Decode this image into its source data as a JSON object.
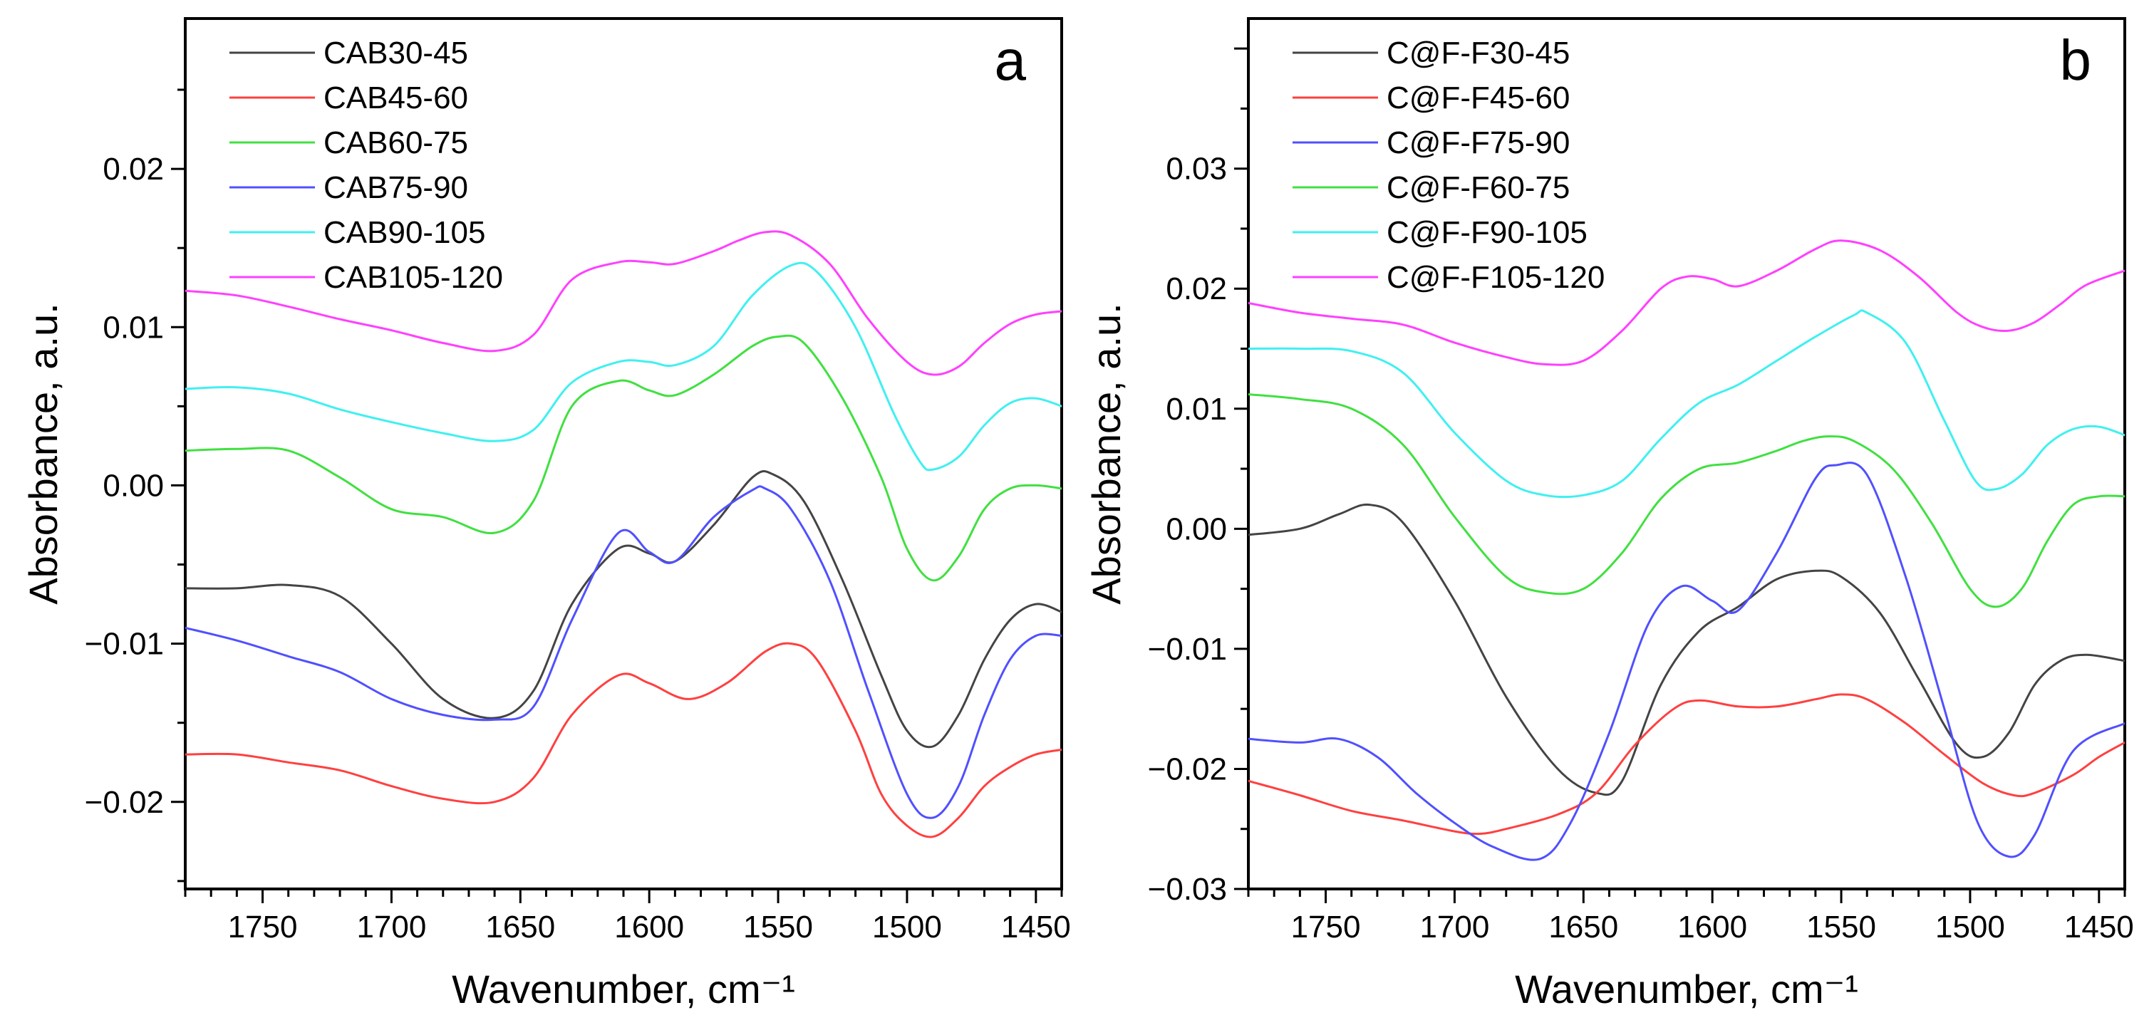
{
  "chart_data": [
    {
      "type": "line",
      "panel_label": "a",
      "xlabel": "Wavenumber, cm⁻¹",
      "ylabel": "Absorbance, a.u.",
      "xlim": [
        1780,
        1440
      ],
      "ylim": [
        -0.0255,
        0.0295
      ],
      "xticks": [
        1750,
        1700,
        1650,
        1600,
        1550,
        1500,
        1450
      ],
      "xtick_labels": [
        "1750",
        "1700",
        "1650",
        "1600",
        "1550",
        "1500",
        "1450"
      ],
      "yticks": [
        0.02,
        0.01,
        0.0,
        -0.01,
        -0.02
      ],
      "ytick_labels": [
        "0.02",
        "0.01",
        "0.00",
        "−0.01",
        "−0.02"
      ],
      "legend_position": "top-left",
      "series": [
        {
          "name": "CAB30-45",
          "color": "#444444",
          "x": [
            1780,
            1760,
            1740,
            1720,
            1700,
            1680,
            1660,
            1645,
            1630,
            1612,
            1600,
            1590,
            1575,
            1560,
            1552,
            1540,
            1525,
            1510,
            1500,
            1490,
            1480,
            1470,
            1460,
            1450,
            1440
          ],
          "y": [
            -0.0065,
            -0.0065,
            -0.0063,
            -0.007,
            -0.01,
            -0.0135,
            -0.0147,
            -0.013,
            -0.0075,
            -0.004,
            -0.0043,
            -0.0048,
            -0.0025,
            0.0005,
            0.0007,
            -0.001,
            -0.006,
            -0.012,
            -0.0155,
            -0.0165,
            -0.0145,
            -0.011,
            -0.0085,
            -0.0075,
            -0.008
          ]
        },
        {
          "name": "CAB45-60",
          "color": "#ff4040",
          "x": [
            1780,
            1760,
            1740,
            1720,
            1700,
            1680,
            1660,
            1645,
            1630,
            1612,
            1600,
            1585,
            1570,
            1555,
            1545,
            1535,
            1520,
            1510,
            1500,
            1490,
            1480,
            1470,
            1460,
            1450,
            1440
          ],
          "y": [
            -0.017,
            -0.017,
            -0.0175,
            -0.018,
            -0.019,
            -0.0198,
            -0.02,
            -0.0185,
            -0.0145,
            -0.012,
            -0.0125,
            -0.0135,
            -0.0125,
            -0.0105,
            -0.01,
            -0.011,
            -0.0155,
            -0.0195,
            -0.0215,
            -0.0222,
            -0.021,
            -0.019,
            -0.0178,
            -0.017,
            -0.0167
          ]
        },
        {
          "name": "CAB60-75",
          "color": "#40e040",
          "x": [
            1780,
            1760,
            1740,
            1720,
            1700,
            1680,
            1660,
            1645,
            1630,
            1612,
            1600,
            1590,
            1575,
            1560,
            1550,
            1540,
            1525,
            1510,
            1500,
            1490,
            1480,
            1470,
            1460,
            1450,
            1440
          ],
          "y": [
            0.0022,
            0.0023,
            0.0022,
            0.0005,
            -0.0015,
            -0.002,
            -0.003,
            -0.001,
            0.005,
            0.0066,
            0.006,
            0.0057,
            0.007,
            0.0088,
            0.0094,
            0.009,
            0.0055,
            0.0005,
            -0.004,
            -0.006,
            -0.0045,
            -0.0015,
            -0.0002,
            0.0,
            -0.0002
          ]
        },
        {
          "name": "CAB75-90",
          "color": "#5050ff",
          "x": [
            1780,
            1760,
            1740,
            1720,
            1700,
            1680,
            1660,
            1645,
            1630,
            1612,
            1600,
            1590,
            1575,
            1560,
            1555,
            1545,
            1530,
            1515,
            1500,
            1490,
            1480,
            1470,
            1460,
            1450,
            1440
          ],
          "y": [
            -0.009,
            -0.0098,
            -0.0108,
            -0.0118,
            -0.0135,
            -0.0145,
            -0.0148,
            -0.014,
            -0.0085,
            -0.003,
            -0.0042,
            -0.0048,
            -0.002,
            -0.0003,
            -0.0002,
            -0.0015,
            -0.006,
            -0.013,
            -0.0195,
            -0.021,
            -0.019,
            -0.0145,
            -0.011,
            -0.0095,
            -0.0095
          ]
        },
        {
          "name": "CAB90-105",
          "color": "#40f0f0",
          "x": [
            1780,
            1760,
            1740,
            1720,
            1700,
            1680,
            1660,
            1645,
            1630,
            1612,
            1600,
            1590,
            1575,
            1560,
            1545,
            1535,
            1520,
            1505,
            1495,
            1490,
            1480,
            1470,
            1460,
            1450,
            1440
          ],
          "y": [
            0.0061,
            0.0062,
            0.0058,
            0.0048,
            0.004,
            0.0033,
            0.0028,
            0.0035,
            0.0065,
            0.0078,
            0.0078,
            0.0076,
            0.0088,
            0.012,
            0.0139,
            0.0135,
            0.01,
            0.0045,
            0.0015,
            0.001,
            0.0018,
            0.0038,
            0.0052,
            0.0055,
            0.005
          ]
        },
        {
          "name": "CAB105-120",
          "color": "#ff40ff",
          "x": [
            1780,
            1760,
            1740,
            1720,
            1700,
            1680,
            1660,
            1645,
            1630,
            1612,
            1600,
            1590,
            1575,
            1565,
            1555,
            1545,
            1530,
            1515,
            1500,
            1490,
            1480,
            1470,
            1460,
            1450,
            1440
          ],
          "y": [
            0.0123,
            0.012,
            0.0113,
            0.0105,
            0.0098,
            0.009,
            0.0085,
            0.0095,
            0.013,
            0.0141,
            0.0141,
            0.014,
            0.0148,
            0.0155,
            0.016,
            0.0158,
            0.014,
            0.0105,
            0.0078,
            0.007,
            0.0075,
            0.009,
            0.0102,
            0.0108,
            0.011
          ]
        }
      ]
    },
    {
      "type": "line",
      "panel_label": "b",
      "xlabel": "Wavenumber, cm⁻¹",
      "ylabel": "Absorbance, a.u.",
      "xlim": [
        1780,
        1440
      ],
      "ylim": [
        -0.03,
        0.0425
      ],
      "xticks": [
        1750,
        1700,
        1650,
        1600,
        1550,
        1500,
        1450
      ],
      "xtick_labels": [
        "1750",
        "1700",
        "1650",
        "1600",
        "1550",
        "1500",
        "1450"
      ],
      "yticks": [
        0.03,
        0.02,
        0.01,
        0.0,
        -0.01,
        -0.02,
        -0.03
      ],
      "ytick_labels": [
        "0.03",
        "0.02",
        "0.01",
        "0.00",
        "−0.01",
        "−0.02",
        "−0.03"
      ],
      "legend_position": "top-left",
      "series": [
        {
          "name": "C@F-F30-45",
          "color": "#444444",
          "x": [
            1780,
            1760,
            1745,
            1733,
            1720,
            1700,
            1680,
            1660,
            1645,
            1635,
            1620,
            1605,
            1590,
            1575,
            1560,
            1550,
            1535,
            1520,
            1505,
            1495,
            1485,
            1475,
            1465,
            1455,
            1440
          ],
          "y": [
            -0.0005,
            0.0,
            0.0012,
            0.002,
            0.0005,
            -0.006,
            -0.014,
            -0.02,
            -0.022,
            -0.021,
            -0.013,
            -0.0085,
            -0.0065,
            -0.0042,
            -0.0035,
            -0.004,
            -0.007,
            -0.0125,
            -0.018,
            -0.019,
            -0.017,
            -0.013,
            -0.011,
            -0.0105,
            -0.011
          ]
        },
        {
          "name": "C@F-F45-60",
          "color": "#ff4040",
          "x": [
            1780,
            1760,
            1740,
            1720,
            1700,
            1690,
            1680,
            1660,
            1645,
            1630,
            1615,
            1605,
            1590,
            1575,
            1560,
            1550,
            1540,
            1525,
            1510,
            1495,
            1483,
            1475,
            1460,
            1450,
            1440
          ],
          "y": [
            -0.021,
            -0.0222,
            -0.0235,
            -0.0243,
            -0.0252,
            -0.0254,
            -0.025,
            -0.0238,
            -0.022,
            -0.018,
            -0.015,
            -0.0143,
            -0.0148,
            -0.0148,
            -0.0142,
            -0.0138,
            -0.0142,
            -0.0162,
            -0.0188,
            -0.0212,
            -0.0222,
            -0.022,
            -0.0205,
            -0.019,
            -0.0178
          ]
        },
        {
          "name": "C@F-F75-90",
          "color": "#5050ff",
          "x": [
            1780,
            1760,
            1745,
            1730,
            1715,
            1700,
            1685,
            1667,
            1655,
            1640,
            1625,
            1612,
            1600,
            1590,
            1575,
            1560,
            1552,
            1540,
            1525,
            1510,
            1497,
            1485,
            1475,
            1460,
            1440
          ],
          "y": [
            -0.0175,
            -0.0178,
            -0.0175,
            -0.019,
            -0.022,
            -0.0245,
            -0.0265,
            -0.0275,
            -0.0245,
            -0.017,
            -0.008,
            -0.0048,
            -0.006,
            -0.0068,
            -0.002,
            0.0042,
            0.0053,
            0.0045,
            -0.004,
            -0.015,
            -0.0245,
            -0.0273,
            -0.0255,
            -0.0185,
            -0.0162
          ]
        },
        {
          "name": "C@F-F60-75",
          "color": "#40e040",
          "x": [
            1780,
            1760,
            1740,
            1720,
            1700,
            1680,
            1665,
            1650,
            1635,
            1620,
            1605,
            1590,
            1575,
            1565,
            1555,
            1545,
            1530,
            1515,
            1500,
            1490,
            1480,
            1470,
            1460,
            1450,
            1440
          ],
          "y": [
            0.0112,
            0.0108,
            0.01,
            0.007,
            0.001,
            -0.004,
            -0.0053,
            -0.005,
            -0.002,
            0.0025,
            0.005,
            0.0055,
            0.0065,
            0.0073,
            0.0077,
            0.0073,
            0.005,
            0.0005,
            -0.005,
            -0.0065,
            -0.005,
            -0.001,
            0.002,
            0.0027,
            0.0027
          ]
        },
        {
          "name": "C@F-F90-105",
          "color": "#40f0f0",
          "x": [
            1780,
            1760,
            1740,
            1720,
            1700,
            1680,
            1665,
            1650,
            1635,
            1620,
            1605,
            1590,
            1575,
            1560,
            1545,
            1540,
            1525,
            1510,
            1498,
            1490,
            1480,
            1470,
            1460,
            1450,
            1440
          ],
          "y": [
            0.015,
            0.015,
            0.0148,
            0.013,
            0.008,
            0.004,
            0.0028,
            0.0028,
            0.004,
            0.0075,
            0.0105,
            0.012,
            0.014,
            0.016,
            0.0178,
            0.018,
            0.0155,
            0.009,
            0.004,
            0.0033,
            0.0045,
            0.007,
            0.0083,
            0.0085,
            0.0078
          ]
        },
        {
          "name": "C@F-F105-120",
          "color": "#ff40ff",
          "x": [
            1780,
            1760,
            1740,
            1720,
            1700,
            1680,
            1665,
            1650,
            1635,
            1620,
            1610,
            1600,
            1590,
            1575,
            1560,
            1550,
            1535,
            1520,
            1505,
            1495,
            1485,
            1475,
            1465,
            1455,
            1440
          ],
          "y": [
            0.0188,
            0.018,
            0.0175,
            0.017,
            0.0155,
            0.0143,
            0.0137,
            0.014,
            0.0165,
            0.02,
            0.021,
            0.0208,
            0.0202,
            0.0215,
            0.0233,
            0.024,
            0.0232,
            0.021,
            0.018,
            0.0168,
            0.0165,
            0.0172,
            0.0187,
            0.0203,
            0.0215
          ]
        }
      ]
    }
  ]
}
